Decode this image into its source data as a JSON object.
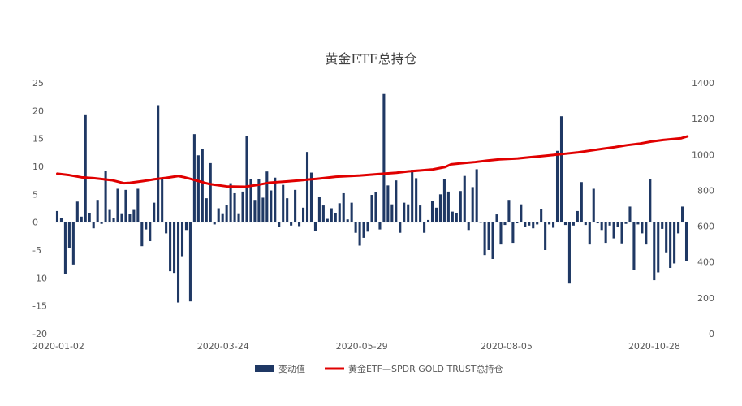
{
  "chart_data": {
    "type": "bar+line",
    "title": "黄金ETF总持仓",
    "x_tick_labels": [
      "2020-01-02",
      "2020-03-24",
      "2020-05-29",
      "2020-08-05",
      "2020-10-28"
    ],
    "x_tick_indices": [
      0,
      55,
      101,
      149,
      198
    ],
    "left_axis": {
      "min": -20,
      "max": 25,
      "step": 5,
      "ticks": [
        "-20",
        "-15",
        "-10",
        "-5",
        "0",
        "5",
        "10",
        "15",
        "20",
        "25"
      ]
    },
    "right_axis": {
      "min": 0,
      "max": 1400,
      "step": 200,
      "ticks": [
        "0",
        "200",
        "400",
        "600",
        "800",
        "1000",
        "1200",
        "1400"
      ]
    },
    "legend_position": "bottom",
    "series": [
      {
        "name": "变动值",
        "type": "bar",
        "axis": "left",
        "color": "#1f3864",
        "values": [
          2.0,
          0.8,
          -9.3,
          -4.7,
          -7.6,
          3.7,
          1.0,
          19.2,
          1.7,
          -1.1,
          4.0,
          -0.3,
          9.2,
          2.2,
          0.8,
          6.0,
          1.6,
          5.8,
          1.5,
          2.2,
          6.0,
          -4.3,
          -1.3,
          -3.4,
          3.5,
          21.0,
          8.0,
          -2.0,
          -8.8,
          -9.1,
          -14.4,
          -6.1,
          -1.4,
          -14.2,
          15.8,
          12.0,
          13.2,
          4.3,
          10.6,
          -0.4,
          2.5,
          1.6,
          3.1,
          7.0,
          5.2,
          1.6,
          5.5,
          15.4,
          7.8,
          4.0,
          7.7,
          4.4,
          9.1,
          5.7,
          8.0,
          -0.9,
          6.7,
          4.3,
          -0.6,
          5.8,
          -0.7,
          2.6,
          12.6,
          8.9,
          -1.6,
          4.6,
          3.0,
          0.6,
          2.5,
          1.7,
          3.4,
          5.2,
          0.5,
          3.5,
          -1.9,
          -4.2,
          -2.8,
          -1.7,
          4.9,
          5.4,
          -1.3,
          23.0,
          6.6,
          3.2,
          7.5,
          -1.9,
          3.5,
          3.2,
          9.4,
          7.9,
          3.0,
          -1.9,
          0.4,
          3.8,
          2.6,
          5.0,
          7.8,
          5.5,
          1.9,
          1.7,
          5.6,
          8.3,
          -1.4,
          6.3,
          9.5,
          -0.1,
          -5.9,
          -5.0,
          -6.6,
          1.4,
          -4.0,
          -0.5,
          4.0,
          -3.7,
          -0.2,
          3.2,
          -0.9,
          -0.6,
          -1.1,
          -0.4,
          2.3,
          -5.0,
          -0.4,
          -1.0,
          12.8,
          19.0,
          -0.5,
          -11.0,
          -0.6,
          2.0,
          7.2,
          -0.5,
          -4.0,
          6.0,
          -0.2,
          -1.4,
          -3.7,
          -0.6,
          -2.9,
          -0.8,
          -3.8,
          -0.3,
          2.8,
          -8.5,
          -0.4,
          -2.0,
          -4.0,
          7.8,
          -10.4,
          -9.0,
          -1.2,
          -5.4,
          -8.2,
          -7.4,
          -2.0,
          2.8,
          -7.0
        ]
      },
      {
        "name": "黄金ETF—SPDR GOLD TRUST总持仓",
        "type": "line",
        "axis": "right",
        "color": "#e00000",
        "x": [
          0,
          4,
          8,
          12,
          18,
          22,
          24,
          28,
          30,
          32,
          36,
          40,
          42,
          46,
          50,
          56,
          62,
          66,
          70,
          76,
          80,
          86,
          92,
          100,
          106,
          112,
          116,
          120,
          124,
          128,
          130,
          134,
          138,
          142,
          146,
          152,
          156,
          160,
          164,
          168,
          172,
          176,
          180,
          184,
          188,
          192,
          196,
          200,
          206,
          208
        ],
        "values": [
          893,
          885,
          873,
          868,
          857,
          840,
          842,
          851,
          856,
          862,
          870,
          880,
          873,
          855,
          836,
          822,
          820,
          830,
          843,
          850,
          856,
          865,
          876,
          883,
          891,
          898,
          906,
          911,
          917,
          930,
          945,
          952,
          958,
          966,
          973,
          978,
          985,
          991,
          998,
          1005,
          1012,
          1022,
          1032,
          1041,
          1052,
          1060,
          1072,
          1081,
          1091,
          1101
        ]
      }
    ]
  }
}
